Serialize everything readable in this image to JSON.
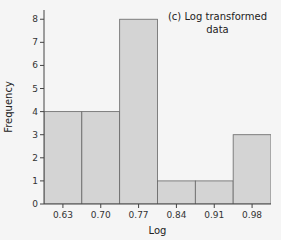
{
  "chart_data": {
    "type": "histogram",
    "title": "(c) Log transformed\ndata",
    "x_label": "Log",
    "y_label": "Frequency",
    "bins": [
      0.595,
      0.665,
      0.735,
      0.805,
      0.875,
      0.945,
      1.015
    ],
    "values": [
      4,
      4,
      8,
      1,
      1,
      3
    ],
    "color": "#d4d4d4",
    "xlim": [
      0.595,
      1.015
    ],
    "xticks": [
      0.63,
      {
        "value": 0.7,
        "label": "0.70"
      },
      0.77,
      0.84,
      0.91,
      0.98
    ],
    "ylim": [
      0,
      8.4
    ],
    "yticks": [
      0,
      1,
      2,
      3,
      4,
      5,
      6,
      7,
      8
    ]
  }
}
